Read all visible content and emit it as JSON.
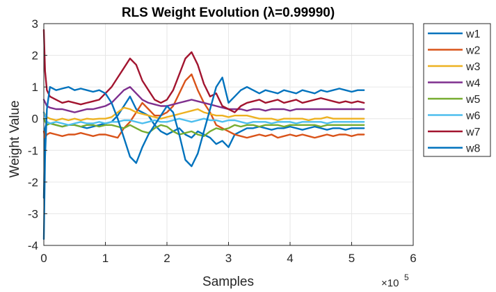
{
  "chart_data": {
    "type": "line",
    "title": "RLS Weight Evolution (λ=0.99990)",
    "xlabel": "Samples",
    "ylabel": "Weight Value",
    "x_exponent_label": "×10",
    "x_exponent_power": "5",
    "xlim": [
      0,
      6
    ],
    "ylim": [
      -4,
      3
    ],
    "xticks": [
      "0",
      "1",
      "2",
      "3",
      "4",
      "5",
      "6"
    ],
    "yticks": [
      "3",
      "2",
      "1",
      "0",
      "-1",
      "-2",
      "-3",
      "-4"
    ],
    "grid": true,
    "legend_position": "outside-right-top",
    "x_unit_note": "x values in units of 1e5 samples",
    "series": [
      {
        "name": "w1",
        "color": "#0072BD",
        "x": [
          0,
          0.02,
          0.05,
          0.1,
          0.2,
          0.3,
          0.4,
          0.5,
          0.6,
          0.7,
          0.8,
          0.9,
          1.0,
          1.1,
          1.2,
          1.3,
          1.4,
          1.5,
          1.6,
          1.7,
          1.8,
          1.9,
          2.0,
          2.1,
          2.2,
          2.3,
          2.4,
          2.5,
          2.6,
          2.7,
          2.8,
          2.9,
          3.0,
          3.1,
          3.2,
          3.3,
          3.4,
          3.5,
          3.6,
          3.7,
          3.8,
          3.9,
          4.0,
          4.1,
          4.2,
          4.3,
          4.4,
          4.5,
          4.6,
          4.7,
          4.8,
          4.9,
          5.0,
          5.1,
          5.2
        ],
        "y": [
          -2.5,
          -0.3,
          -0.1,
          -0.15,
          -0.2,
          -0.25,
          -0.2,
          -0.2,
          -0.25,
          -0.3,
          -0.25,
          -0.2,
          -0.15,
          -0.1,
          0.1,
          0.4,
          0.7,
          0.3,
          0.2,
          0.1,
          -0.2,
          -0.4,
          -0.5,
          -0.4,
          -0.3,
          -0.5,
          -0.6,
          -0.4,
          -0.5,
          -0.6,
          -0.8,
          -0.7,
          -0.9,
          -0.5,
          -0.4,
          -0.3,
          -0.3,
          -0.25,
          -0.3,
          -0.35,
          -0.3,
          -0.3,
          -0.25,
          -0.3,
          -0.35,
          -0.3,
          -0.25,
          -0.3,
          -0.35,
          -0.3,
          -0.3,
          -0.35,
          -0.3,
          -0.3,
          -0.3
        ]
      },
      {
        "name": "w2",
        "color": "#D95319",
        "x": [
          0,
          0.02,
          0.05,
          0.1,
          0.2,
          0.3,
          0.4,
          0.5,
          0.6,
          0.7,
          0.8,
          0.9,
          1.0,
          1.1,
          1.2,
          1.3,
          1.4,
          1.5,
          1.6,
          1.7,
          1.8,
          1.9,
          2.0,
          2.1,
          2.2,
          2.3,
          2.4,
          2.5,
          2.6,
          2.7,
          2.8,
          2.9,
          3.0,
          3.1,
          3.2,
          3.3,
          3.4,
          3.5,
          3.6,
          3.7,
          3.8,
          3.9,
          4.0,
          4.1,
          4.2,
          4.3,
          4.4,
          4.5,
          4.6,
          4.7,
          4.8,
          4.9,
          5.0,
          5.1,
          5.2
        ],
        "y": [
          -0.4,
          -0.6,
          -0.5,
          -0.45,
          -0.5,
          -0.55,
          -0.5,
          -0.5,
          -0.45,
          -0.5,
          -0.55,
          -0.5,
          -0.5,
          -0.55,
          -0.6,
          -0.3,
          -0.1,
          0.2,
          0.5,
          0.3,
          0.1,
          0.1,
          0.2,
          0.4,
          0.8,
          1.2,
          1.4,
          0.9,
          0.5,
          0.2,
          -0.2,
          -0.3,
          -0.4,
          -0.5,
          -0.55,
          -0.6,
          -0.55,
          -0.5,
          -0.55,
          -0.5,
          -0.6,
          -0.55,
          -0.5,
          -0.55,
          -0.5,
          -0.55,
          -0.6,
          -0.55,
          -0.5,
          -0.55,
          -0.5,
          -0.5,
          -0.55,
          -0.5,
          -0.5
        ]
      },
      {
        "name": "w3",
        "color": "#EDB120",
        "x": [
          0,
          0.05,
          0.1,
          0.2,
          0.3,
          0.4,
          0.5,
          0.6,
          0.7,
          0.8,
          0.9,
          1.0,
          1.1,
          1.2,
          1.3,
          1.4,
          1.5,
          1.6,
          1.7,
          1.8,
          1.9,
          2.0,
          2.1,
          2.2,
          2.3,
          2.4,
          2.5,
          2.6,
          2.7,
          2.8,
          2.9,
          3.0,
          3.1,
          3.2,
          3.3,
          3.4,
          3.5,
          3.6,
          3.7,
          3.8,
          3.9,
          4.0,
          4.1,
          4.2,
          4.3,
          4.4,
          4.5,
          4.6,
          4.7,
          4.8,
          4.9,
          5.0,
          5.1,
          5.2
        ],
        "y": [
          0.2,
          0.05,
          0.0,
          -0.05,
          0.0,
          -0.05,
          0.0,
          -0.05,
          0.0,
          -0.02,
          0.0,
          0.0,
          0.05,
          0.2,
          0.35,
          0.3,
          0.2,
          0.15,
          0.1,
          0.05,
          0.0,
          0.05,
          0.1,
          0.15,
          0.2,
          0.25,
          0.3,
          0.2,
          0.15,
          0.1,
          0.1,
          0.05,
          0.1,
          0.1,
          0.1,
          0.05,
          0.0,
          0.0,
          0.0,
          -0.05,
          0.0,
          0.0,
          0.0,
          0.0,
          -0.05,
          0.0,
          0.0,
          0.05,
          0.0,
          0.0,
          0.0,
          0.0,
          0.0,
          0.0
        ]
      },
      {
        "name": "w4",
        "color": "#7E2F8E",
        "x": [
          0,
          0.05,
          0.1,
          0.2,
          0.3,
          0.4,
          0.5,
          0.6,
          0.7,
          0.8,
          0.9,
          1.0,
          1.1,
          1.2,
          1.3,
          1.4,
          1.5,
          1.6,
          1.7,
          1.8,
          1.9,
          2.0,
          2.1,
          2.2,
          2.3,
          2.4,
          2.5,
          2.6,
          2.7,
          2.8,
          2.9,
          3.0,
          3.1,
          3.2,
          3.3,
          3.4,
          3.5,
          3.6,
          3.7,
          3.8,
          3.9,
          4.0,
          4.1,
          4.2,
          4.3,
          4.4,
          4.5,
          4.6,
          4.7,
          4.8,
          4.9,
          5.0,
          5.1,
          5.2
        ],
        "y": [
          0.6,
          0.4,
          0.35,
          0.3,
          0.3,
          0.25,
          0.2,
          0.25,
          0.3,
          0.3,
          0.35,
          0.4,
          0.5,
          0.7,
          0.9,
          1.0,
          0.8,
          0.6,
          0.5,
          0.45,
          0.4,
          0.4,
          0.45,
          0.5,
          0.55,
          0.6,
          0.55,
          0.5,
          0.45,
          0.4,
          0.35,
          0.3,
          0.3,
          0.3,
          0.25,
          0.3,
          0.3,
          0.25,
          0.3,
          0.3,
          0.3,
          0.25,
          0.3,
          0.3,
          0.3,
          0.3,
          0.3,
          0.3,
          0.3,
          0.3,
          0.3,
          0.3,
          0.3,
          0.3
        ]
      },
      {
        "name": "w5",
        "color": "#77AC30",
        "x": [
          0,
          0.05,
          0.1,
          0.2,
          0.3,
          0.4,
          0.5,
          0.6,
          0.7,
          0.8,
          0.9,
          1.0,
          1.1,
          1.2,
          1.3,
          1.4,
          1.5,
          1.6,
          1.7,
          1.8,
          1.9,
          2.0,
          2.1,
          2.2,
          2.3,
          2.4,
          2.5,
          2.6,
          2.7,
          2.8,
          2.9,
          3.0,
          3.1,
          3.2,
          3.3,
          3.4,
          3.5,
          3.6,
          3.7,
          3.8,
          3.9,
          4.0,
          4.1,
          4.2,
          4.3,
          4.4,
          4.5,
          4.6,
          4.7,
          4.8,
          4.9,
          5.0,
          5.1,
          5.2
        ],
        "y": [
          0.0,
          -0.2,
          -0.15,
          -0.2,
          -0.25,
          -0.2,
          -0.2,
          -0.25,
          -0.2,
          -0.2,
          -0.25,
          -0.2,
          -0.2,
          -0.25,
          -0.3,
          -0.2,
          -0.3,
          -0.4,
          -0.45,
          -0.3,
          -0.2,
          -0.25,
          -0.4,
          -0.5,
          -0.45,
          -0.4,
          -0.5,
          -0.55,
          -0.4,
          -0.3,
          -0.35,
          -0.3,
          -0.2,
          -0.25,
          -0.2,
          -0.2,
          -0.25,
          -0.2,
          -0.2,
          -0.2,
          -0.25,
          -0.2,
          -0.2,
          -0.2,
          -0.2,
          -0.2,
          -0.25,
          -0.2,
          -0.2,
          -0.2,
          -0.2,
          -0.2,
          -0.2,
          -0.2
        ]
      },
      {
        "name": "w6",
        "color": "#4DBEEE",
        "x": [
          0,
          0.05,
          0.1,
          0.2,
          0.3,
          0.4,
          0.5,
          0.6,
          0.7,
          0.8,
          0.9,
          1.0,
          1.1,
          1.2,
          1.3,
          1.4,
          1.5,
          1.6,
          1.7,
          1.8,
          1.9,
          2.0,
          2.1,
          2.2,
          2.3,
          2.4,
          2.5,
          2.6,
          2.7,
          2.8,
          2.9,
          3.0,
          3.1,
          3.2,
          3.3,
          3.4,
          3.5,
          3.6,
          3.7,
          3.8,
          3.9,
          4.0,
          4.1,
          4.2,
          4.3,
          4.4,
          4.5,
          4.6,
          4.7,
          4.8,
          4.9,
          5.0,
          5.1,
          5.2
        ],
        "y": [
          0.2,
          -0.1,
          -0.15,
          -0.1,
          -0.15,
          -0.2,
          -0.15,
          -0.1,
          -0.15,
          -0.15,
          -0.1,
          -0.15,
          -0.1,
          -0.1,
          -0.05,
          -0.05,
          -0.1,
          -0.15,
          -0.1,
          -0.05,
          -0.1,
          -0.1,
          -0.05,
          0.0,
          -0.05,
          -0.1,
          -0.05,
          0.0,
          -0.05,
          -0.05,
          -0.1,
          -0.05,
          -0.05,
          -0.1,
          -0.15,
          -0.1,
          -0.1,
          -0.1,
          -0.15,
          -0.1,
          -0.1,
          -0.1,
          -0.15,
          -0.1,
          -0.1,
          -0.1,
          -0.1,
          -0.15,
          -0.1,
          -0.1,
          -0.1,
          -0.1,
          -0.1,
          -0.1
        ]
      },
      {
        "name": "w7",
        "color": "#A2142F",
        "x": [
          0,
          0.02,
          0.05,
          0.1,
          0.2,
          0.3,
          0.4,
          0.5,
          0.6,
          0.7,
          0.8,
          0.9,
          1.0,
          1.1,
          1.2,
          1.3,
          1.4,
          1.5,
          1.6,
          1.7,
          1.8,
          1.9,
          2.0,
          2.1,
          2.2,
          2.3,
          2.4,
          2.5,
          2.6,
          2.7,
          2.8,
          2.9,
          3.0,
          3.1,
          3.2,
          3.3,
          3.4,
          3.5,
          3.6,
          3.7,
          3.8,
          3.9,
          4.0,
          4.1,
          4.2,
          4.3,
          4.4,
          4.5,
          4.6,
          4.7,
          4.8,
          4.9,
          5.0,
          5.1,
          5.2
        ],
        "y": [
          2.8,
          1.5,
          0.9,
          0.7,
          0.6,
          0.5,
          0.55,
          0.5,
          0.45,
          0.5,
          0.55,
          0.6,
          0.8,
          1.0,
          1.3,
          1.6,
          1.9,
          1.7,
          1.2,
          0.9,
          0.6,
          0.5,
          0.6,
          0.9,
          1.4,
          1.9,
          2.1,
          1.7,
          1.1,
          0.7,
          0.8,
          0.4,
          0.3,
          0.2,
          0.4,
          0.5,
          0.55,
          0.6,
          0.5,
          0.55,
          0.6,
          0.5,
          0.55,
          0.6,
          0.5,
          0.55,
          0.6,
          0.65,
          0.6,
          0.55,
          0.5,
          0.55,
          0.5,
          0.55,
          0.5
        ]
      },
      {
        "name": "w8",
        "color": "#0072BD",
        "x": [
          0,
          0.02,
          0.05,
          0.1,
          0.2,
          0.3,
          0.4,
          0.5,
          0.6,
          0.7,
          0.8,
          0.9,
          1.0,
          1.1,
          1.2,
          1.3,
          1.4,
          1.5,
          1.6,
          1.7,
          1.8,
          1.9,
          2.0,
          2.1,
          2.2,
          2.3,
          2.4,
          2.5,
          2.6,
          2.7,
          2.8,
          2.9,
          3.0,
          3.1,
          3.2,
          3.3,
          3.4,
          3.5,
          3.6,
          3.7,
          3.8,
          3.9,
          4.0,
          4.1,
          4.2,
          4.3,
          4.4,
          4.5,
          4.6,
          4.7,
          4.8,
          4.9,
          5.0,
          5.1,
          5.2
        ],
        "y": [
          -3.8,
          -1.2,
          0.3,
          1.0,
          0.9,
          0.95,
          1.0,
          0.9,
          0.95,
          0.9,
          0.85,
          0.9,
          0.8,
          0.5,
          0.0,
          -0.6,
          -1.2,
          -1.4,
          -0.9,
          -0.5,
          -0.2,
          0.1,
          0.4,
          0.2,
          -0.5,
          -1.3,
          -1.5,
          -1.1,
          -0.4,
          0.3,
          1.0,
          1.3,
          0.5,
          0.7,
          0.9,
          1.0,
          0.9,
          0.8,
          0.9,
          0.85,
          0.8,
          0.9,
          0.85,
          0.8,
          0.9,
          0.85,
          0.8,
          0.9,
          0.85,
          0.9,
          0.95,
          0.9,
          0.85,
          0.9,
          0.9
        ]
      }
    ]
  }
}
